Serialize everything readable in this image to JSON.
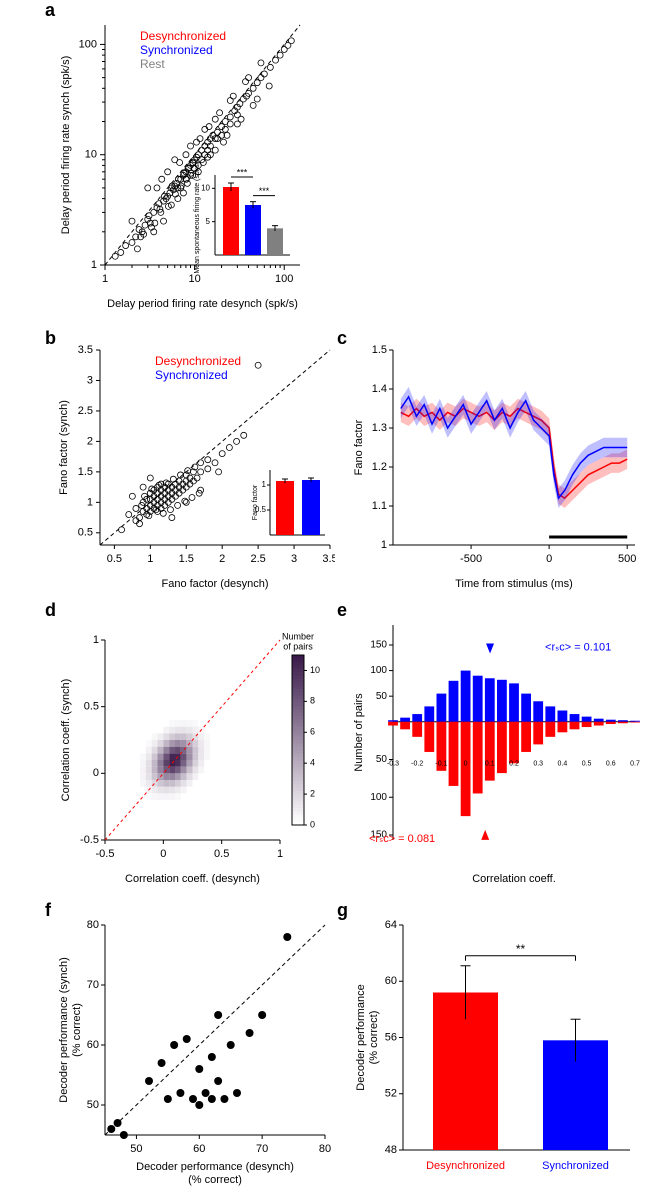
{
  "panel_a": {
    "label": "a",
    "legend": [
      "Desynchronized",
      "Synchronized",
      "Rest"
    ],
    "legend_colors": [
      "#ff0000",
      "#0000ff",
      "#808080"
    ],
    "x_label": "Delay period firing rate desynch (spk/s)",
    "y_label": "Delay period firing rate synch (spk/s)",
    "scale": "log",
    "xlim": [
      1,
      150
    ],
    "ylim": [
      1,
      150
    ],
    "xticks": [
      1,
      10,
      100
    ],
    "yticks": [
      1,
      10,
      100
    ],
    "scatter_color": "#000000",
    "inset": {
      "y_label": "Mean spontaneous\nfiring rate (spks/s)",
      "colors": [
        "#ff0000",
        "#0000ff",
        "#808080"
      ],
      "values": [
        10.2,
        7.5,
        4.0
      ],
      "errors": [
        0.6,
        0.5,
        0.4
      ],
      "ylim": [
        0,
        12
      ],
      "yticks": [
        5,
        10
      ],
      "sig_marks": [
        "***",
        "***"
      ]
    },
    "points": [
      [
        1.3,
        1.2
      ],
      [
        1.5,
        1.3
      ],
      [
        1.7,
        1.5
      ],
      [
        2.0,
        1.6
      ],
      [
        2.2,
        1.8
      ],
      [
        2.4,
        2.1
      ],
      [
        2.6,
        2.0
      ],
      [
        2.8,
        2.3
      ],
      [
        3.0,
        2.6
      ],
      [
        3.2,
        2.4
      ],
      [
        3.5,
        3.0
      ],
      [
        3.8,
        3.3
      ],
      [
        4.0,
        3.6
      ],
      [
        4.2,
        3.0
      ],
      [
        4.5,
        3.8
      ],
      [
        4.8,
        4.0
      ],
      [
        5.0,
        4.2
      ],
      [
        5.3,
        4.5
      ],
      [
        5.5,
        5.0
      ],
      [
        5.8,
        4.8
      ],
      [
        6.0,
        5.2
      ],
      [
        6.3,
        5.5
      ],
      [
        6.5,
        5.0
      ],
      [
        7.0,
        6.0
      ],
      [
        7.0,
        5.0
      ],
      [
        7.5,
        6.5
      ],
      [
        8.0,
        7.0
      ],
      [
        8.0,
        6.0
      ],
      [
        8.5,
        7.5
      ],
      [
        9.0,
        8.0
      ],
      [
        9.0,
        6.5
      ],
      [
        9.5,
        8.5
      ],
      [
        10,
        9
      ],
      [
        10,
        7.5
      ],
      [
        10.5,
        9.5
      ],
      [
        11,
        10
      ],
      [
        11,
        8
      ],
      [
        12,
        11
      ],
      [
        12,
        9
      ],
      [
        13,
        12
      ],
      [
        13,
        10
      ],
      [
        14,
        13
      ],
      [
        14,
        11
      ],
      [
        15,
        14
      ],
      [
        15,
        12
      ],
      [
        16,
        15
      ],
      [
        17,
        14
      ],
      [
        18,
        16
      ],
      [
        18,
        14
      ],
      [
        20,
        18
      ],
      [
        20,
        15
      ],
      [
        22,
        20
      ],
      [
        22,
        17
      ],
      [
        25,
        22
      ],
      [
        25,
        19
      ],
      [
        28,
        25
      ],
      [
        30,
        27
      ],
      [
        30,
        23
      ],
      [
        32,
        29
      ],
      [
        35,
        32
      ],
      [
        38,
        34
      ],
      [
        40,
        36
      ],
      [
        45,
        40
      ],
      [
        50,
        45
      ],
      [
        55,
        50
      ],
      [
        60,
        54
      ],
      [
        70,
        62
      ],
      [
        80,
        72
      ],
      [
        90,
        80
      ],
      [
        100,
        90
      ],
      [
        110,
        98
      ],
      [
        120,
        108
      ],
      [
        3.0,
        5.0
      ],
      [
        4.5,
        2.5
      ],
      [
        6.0,
        9.0
      ],
      [
        7.5,
        4.5
      ],
      [
        9.0,
        12
      ],
      [
        11,
        7
      ],
      [
        13,
        17
      ],
      [
        15,
        10
      ],
      [
        2.0,
        2.5
      ],
      [
        2.5,
        1.8
      ],
      [
        3.3,
        2.2
      ],
      [
        3.8,
        5.0
      ],
      [
        4.3,
        6.0
      ],
      [
        5.5,
        3.5
      ],
      [
        6.8,
        8.5
      ],
      [
        8.3,
        5.5
      ],
      [
        10.5,
        13
      ],
      [
        12.5,
        8.5
      ],
      [
        14.5,
        18
      ],
      [
        17,
        11
      ],
      [
        19,
        24
      ],
      [
        23,
        15
      ],
      [
        27,
        34
      ],
      [
        33,
        21
      ],
      [
        40,
        50
      ],
      [
        50,
        32
      ],
      [
        3.5,
        2.0
      ],
      [
        5.0,
        7.0
      ],
      [
        6.5,
        4.0
      ],
      [
        8.0,
        10
      ],
      [
        9.5,
        6.5
      ],
      [
        11.5,
        14
      ],
      [
        14,
        9.5
      ],
      [
        17,
        21
      ],
      [
        21,
        13
      ],
      [
        25,
        31
      ],
      [
        30,
        19
      ],
      [
        37,
        46
      ],
      [
        45,
        28
      ],
      [
        55,
        68
      ],
      [
        68,
        42
      ],
      [
        2.3,
        1.4
      ],
      [
        2.7,
        1.9
      ],
      [
        3.1,
        2.8
      ],
      [
        3.6,
        2.4
      ],
      [
        4.1,
        3.2
      ],
      [
        4.6,
        4.2
      ],
      [
        5.1,
        3.4
      ],
      [
        5.6,
        5.2
      ],
      [
        6.1,
        4.4
      ],
      [
        6.6,
        6.0
      ],
      [
        7.1,
        5.2
      ],
      [
        7.6,
        6.8
      ],
      [
        8.1,
        6.0
      ],
      [
        8.6,
        7.6
      ],
      [
        9.1,
        6.8
      ],
      [
        9.6,
        8.4
      ]
    ]
  },
  "panel_b": {
    "label": "b",
    "legend": [
      "Desynchronized",
      "Synchronized"
    ],
    "legend_colors": [
      "#ff0000",
      "#0000ff"
    ],
    "x_label": "Fano factor (desynch)",
    "y_label": "Fano factor (synch)",
    "xlim": [
      0.3,
      3.5
    ],
    "ylim": [
      0.3,
      3.5
    ],
    "xticks": [
      0.5,
      1.0,
      1.5,
      2.0,
      2.5,
      3.0,
      3.5
    ],
    "yticks": [
      0.5,
      1.0,
      1.5,
      2.0,
      2.5,
      3.0,
      3.5
    ],
    "scatter_color": "#000000",
    "inset": {
      "y_label": "Fano factor",
      "colors": [
        "#ff0000",
        "#0000ff"
      ],
      "values": [
        1.08,
        1.1
      ],
      "errors": [
        0.04,
        0.04
      ],
      "ylim": [
        0,
        1.3
      ],
      "yticks": [
        0.5,
        1.0
      ]
    },
    "points": [
      [
        0.7,
        0.8
      ],
      [
        0.8,
        0.7
      ],
      [
        0.8,
        0.9
      ],
      [
        0.85,
        0.75
      ],
      [
        0.9,
        0.85
      ],
      [
        0.9,
        1.0
      ],
      [
        0.95,
        0.8
      ],
      [
        0.95,
        0.9
      ],
      [
        0.95,
        1.05
      ],
      [
        1.0,
        0.85
      ],
      [
        1.0,
        0.95
      ],
      [
        1.0,
        1.05
      ],
      [
        1.0,
        1.15
      ],
      [
        1.05,
        0.9
      ],
      [
        1.05,
        1.0
      ],
      [
        1.05,
        1.1
      ],
      [
        1.05,
        1.2
      ],
      [
        1.1,
        0.85
      ],
      [
        1.1,
        0.95
      ],
      [
        1.1,
        1.05
      ],
      [
        1.1,
        1.15
      ],
      [
        1.1,
        1.25
      ],
      [
        1.15,
        0.9
      ],
      [
        1.15,
        1.0
      ],
      [
        1.15,
        1.1
      ],
      [
        1.15,
        1.2
      ],
      [
        1.15,
        1.3
      ],
      [
        1.2,
        0.95
      ],
      [
        1.2,
        1.05
      ],
      [
        1.2,
        1.15
      ],
      [
        1.2,
        1.25
      ],
      [
        1.25,
        1.0
      ],
      [
        1.25,
        1.1
      ],
      [
        1.25,
        1.2
      ],
      [
        1.25,
        1.3
      ],
      [
        1.3,
        1.05
      ],
      [
        1.3,
        1.15
      ],
      [
        1.3,
        1.25
      ],
      [
        1.35,
        1.1
      ],
      [
        1.35,
        1.2
      ],
      [
        1.35,
        1.3
      ],
      [
        1.4,
        1.15
      ],
      [
        1.4,
        1.25
      ],
      [
        1.4,
        1.35
      ],
      [
        1.45,
        1.2
      ],
      [
        1.45,
        1.3
      ],
      [
        1.5,
        1.25
      ],
      [
        1.5,
        1.35
      ],
      [
        1.5,
        1.45
      ],
      [
        1.55,
        1.3
      ],
      [
        1.55,
        1.4
      ],
      [
        1.6,
        1.35
      ],
      [
        1.6,
        1.5
      ],
      [
        1.65,
        1.4
      ],
      [
        1.7,
        1.5
      ],
      [
        1.7,
        1.65
      ],
      [
        1.8,
        1.55
      ],
      [
        1.8,
        1.7
      ],
      [
        1.9,
        1.65
      ],
      [
        2.0,
        1.8
      ],
      [
        2.1,
        1.9
      ],
      [
        2.2,
        2.0
      ],
      [
        2.3,
        2.1
      ],
      [
        2.5,
        3.25
      ],
      [
        0.6,
        0.55
      ],
      [
        0.75,
        1.1
      ],
      [
        1.3,
        0.75
      ],
      [
        1.5,
        1.0
      ],
      [
        0.9,
        1.25
      ],
      [
        1.7,
        1.2
      ],
      [
        1.0,
        1.4
      ],
      [
        1.95,
        1.5
      ],
      [
        0.85,
        0.65
      ],
      [
        0.88,
        0.95
      ],
      [
        0.92,
        1.1
      ],
      [
        0.98,
        0.78
      ],
      [
        1.02,
        1.22
      ],
      [
        1.08,
        0.88
      ],
      [
        1.12,
        1.28
      ],
      [
        1.18,
        0.82
      ],
      [
        1.22,
        1.32
      ],
      [
        1.28,
        0.88
      ],
      [
        1.32,
        1.38
      ],
      [
        1.38,
        0.95
      ],
      [
        1.42,
        1.45
      ],
      [
        1.48,
        1.02
      ],
      [
        1.52,
        1.52
      ],
      [
        1.58,
        1.08
      ],
      [
        1.62,
        1.58
      ],
      [
        1.68,
        1.15
      ]
    ]
  },
  "panel_c": {
    "label": "c",
    "x_label": "Time from stimulus (ms)",
    "y_label": "Fano factor",
    "xlim": [
      -1000,
      550
    ],
    "ylim": [
      1.0,
      1.5
    ],
    "xticks": [
      -500,
      0,
      500
    ],
    "yticks": [
      1,
      1.1,
      1.2,
      1.3,
      1.4,
      1.5
    ],
    "colors": {
      "desync": "#ff0000",
      "sync": "#0000ff"
    },
    "shade_opacity": 0.25,
    "stim_bar_x": [
      0,
      500
    ],
    "series_red": [
      [
        -950,
        1.34
      ],
      [
        -900,
        1.33
      ],
      [
        -850,
        1.35
      ],
      [
        -800,
        1.33
      ],
      [
        -750,
        1.34
      ],
      [
        -700,
        1.32
      ],
      [
        -650,
        1.34
      ],
      [
        -600,
        1.33
      ],
      [
        -550,
        1.35
      ],
      [
        -500,
        1.34
      ],
      [
        -450,
        1.33
      ],
      [
        -400,
        1.34
      ],
      [
        -350,
        1.32
      ],
      [
        -300,
        1.34
      ],
      [
        -250,
        1.33
      ],
      [
        -200,
        1.35
      ],
      [
        -150,
        1.34
      ],
      [
        -100,
        1.33
      ],
      [
        -50,
        1.32
      ],
      [
        0,
        1.3
      ],
      [
        30,
        1.2
      ],
      [
        60,
        1.13
      ],
      [
        100,
        1.12
      ],
      [
        150,
        1.14
      ],
      [
        200,
        1.16
      ],
      [
        250,
        1.18
      ],
      [
        300,
        1.19
      ],
      [
        350,
        1.2
      ],
      [
        400,
        1.21
      ],
      [
        450,
        1.21
      ],
      [
        500,
        1.22
      ]
    ],
    "series_blue": [
      [
        -950,
        1.35
      ],
      [
        -900,
        1.38
      ],
      [
        -850,
        1.33
      ],
      [
        -800,
        1.36
      ],
      [
        -750,
        1.31
      ],
      [
        -700,
        1.35
      ],
      [
        -650,
        1.3
      ],
      [
        -600,
        1.33
      ],
      [
        -550,
        1.36
      ],
      [
        -500,
        1.31
      ],
      [
        -450,
        1.34
      ],
      [
        -400,
        1.37
      ],
      [
        -350,
        1.32
      ],
      [
        -300,
        1.35
      ],
      [
        -250,
        1.3
      ],
      [
        -200,
        1.34
      ],
      [
        -150,
        1.37
      ],
      [
        -100,
        1.32
      ],
      [
        -50,
        1.3
      ],
      [
        0,
        1.28
      ],
      [
        30,
        1.18
      ],
      [
        60,
        1.12
      ],
      [
        100,
        1.14
      ],
      [
        150,
        1.18
      ],
      [
        200,
        1.21
      ],
      [
        250,
        1.23
      ],
      [
        300,
        1.24
      ],
      [
        350,
        1.25
      ],
      [
        400,
        1.25
      ],
      [
        450,
        1.25
      ],
      [
        500,
        1.25
      ]
    ],
    "band": 0.025
  },
  "panel_d": {
    "label": "d",
    "x_label": "Correlation coeff. (desynch)",
    "y_label": "Correlation coeff. (synch)",
    "colorbar_label": "Number\nof pairs",
    "xlim": [
      -0.5,
      1.0
    ],
    "ylim": [
      -0.5,
      1.0
    ],
    "xticks": [
      -0.5,
      0,
      0.5,
      1
    ],
    "yticks": [
      -0.5,
      0,
      0.5,
      1
    ],
    "colorbar_ticks": [
      0,
      2,
      4,
      6,
      8,
      10
    ],
    "cmap_low": "#ffffff",
    "cmap_high": "#3a1a4a"
  },
  "panel_e": {
    "label": "e",
    "x_label": "Correlation coeff.",
    "y_label": "Number of pairs",
    "colors": {
      "top": "#0000ff",
      "bottom": "#ff0000"
    },
    "bins": [
      -0.3,
      -0.25,
      -0.2,
      -0.15,
      -0.1,
      -0.05,
      0.0,
      0.05,
      0.1,
      0.15,
      0.2,
      0.25,
      0.3,
      0.35,
      0.4,
      0.45,
      0.5,
      0.55,
      0.6,
      0.65,
      0.7
    ],
    "top_values": [
      3,
      8,
      15,
      30,
      55,
      80,
      100,
      90,
      85,
      82,
      75,
      55,
      40,
      30,
      22,
      15,
      10,
      6,
      4,
      3,
      2
    ],
    "bottom_values": [
      5,
      10,
      20,
      40,
      65,
      85,
      125,
      95,
      78,
      68,
      55,
      40,
      30,
      20,
      14,
      10,
      7,
      5,
      3,
      2,
      1
    ],
    "top_yticks": [
      50,
      100,
      150
    ],
    "bottom_yticks": [
      50,
      100,
      150
    ],
    "tick_labels_on_axis": [
      "-0.3",
      "-0.2",
      "-0.1",
      "0",
      "0.1",
      "0.2",
      "0.3",
      "0.4",
      "0.5",
      "0.6",
      "0.7"
    ],
    "top_arrow_label": "<rₛc> = 0.101",
    "bottom_arrow_label": "<rₛc> = 0.081",
    "top_arrow_bin": 0.101,
    "bottom_arrow_bin": 0.081,
    "top_arrow_color": "#0000ff",
    "bottom_arrow_color": "#ff0000"
  },
  "panel_f": {
    "label": "f",
    "x_label": "Decoder performance (desynch)\n(% correct)",
    "y_label": "Decoder performance (synch)\n(% correct)",
    "xlim": [
      45,
      80
    ],
    "ylim": [
      45,
      80
    ],
    "xticks": [
      50,
      60,
      70,
      80
    ],
    "yticks": [
      50,
      60,
      70,
      80
    ],
    "points": [
      [
        46,
        46
      ],
      [
        47,
        47
      ],
      [
        48,
        45
      ],
      [
        52,
        54
      ],
      [
        54,
        57
      ],
      [
        55,
        51
      ],
      [
        56,
        60
      ],
      [
        57,
        52
      ],
      [
        58,
        61
      ],
      [
        59,
        51
      ],
      [
        60,
        56
      ],
      [
        60,
        50
      ],
      [
        61,
        52
      ],
      [
        62,
        58
      ],
      [
        62,
        51
      ],
      [
        63,
        65
      ],
      [
        63,
        54
      ],
      [
        64,
        51
      ],
      [
        65,
        60
      ],
      [
        66,
        52
      ],
      [
        68,
        62
      ],
      [
        70,
        65
      ],
      [
        74,
        78
      ]
    ]
  },
  "panel_g": {
    "label": "g",
    "y_label": "Decoder performance\n(% correct)",
    "ylim": [
      48,
      64
    ],
    "yticks": [
      48,
      52,
      56,
      60,
      64
    ],
    "bar_labels": [
      "Desynchronized",
      "Synchronized"
    ],
    "bar_colors": [
      "#ff0000",
      "#0000ff"
    ],
    "values": [
      59.2,
      55.8
    ],
    "errors": [
      1.9,
      1.5
    ],
    "sig_mark": "**"
  },
  "style": {
    "axis_color": "#000000",
    "tick_fontsize": 11,
    "label_fontsize": 12,
    "panel_label_fontsize": 18
  }
}
